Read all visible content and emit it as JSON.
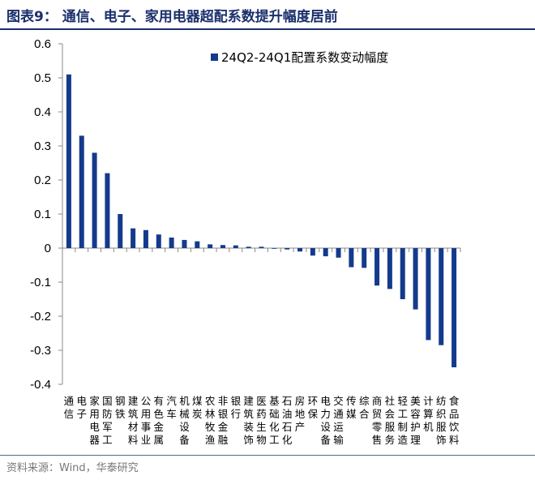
{
  "header": {
    "title": "图表9：  通信、电子、家用电器超配系数提升幅度居前"
  },
  "footer": {
    "source": "资料来源：Wind，华泰研究"
  },
  "colors": {
    "bar": "#143a8c",
    "title": "#1a2f6b"
  },
  "chart_data": {
    "type": "bar",
    "title": "",
    "xlabel": "",
    "ylabel": "",
    "ylim": [
      -0.4,
      0.6
    ],
    "yticks": [
      "0.6",
      "0.5",
      "0.4",
      "0.3",
      "0.2",
      "0.1",
      "0",
      "-0.1",
      "-0.2",
      "-0.3",
      "-0.4"
    ],
    "grid": false,
    "legend": {
      "position": "top-right"
    },
    "categories": [
      "通信",
      "电子",
      "家用电器",
      "国防军工",
      "钢铁",
      "建筑材料",
      "公用事业",
      "有色金属",
      "汽车",
      "机械设备",
      "煤炭",
      "农林牧渔",
      "非银金融",
      "银行",
      "建筑装饰",
      "医药生物",
      "基础化工",
      "石油石化",
      "房地产",
      "环保",
      "电力设备",
      "交通运输",
      "传媒",
      "综合",
      "商贸零售",
      "社会服务",
      "轻工制造",
      "美容护理",
      "计算机",
      "纺织服饰",
      "食品饮料"
    ],
    "series": [
      {
        "name": "24Q2-24Q1配置系数变动幅度",
        "values": [
          0.51,
          0.33,
          0.28,
          0.22,
          0.1,
          0.058,
          0.053,
          0.04,
          0.031,
          0.024,
          0.02,
          0.011,
          0.009,
          0.008,
          0.004,
          0.004,
          -0.002,
          -0.004,
          -0.01,
          -0.022,
          -0.024,
          -0.028,
          -0.056,
          -0.058,
          -0.11,
          -0.12,
          -0.15,
          -0.18,
          -0.27,
          -0.285,
          -0.35
        ]
      }
    ]
  }
}
